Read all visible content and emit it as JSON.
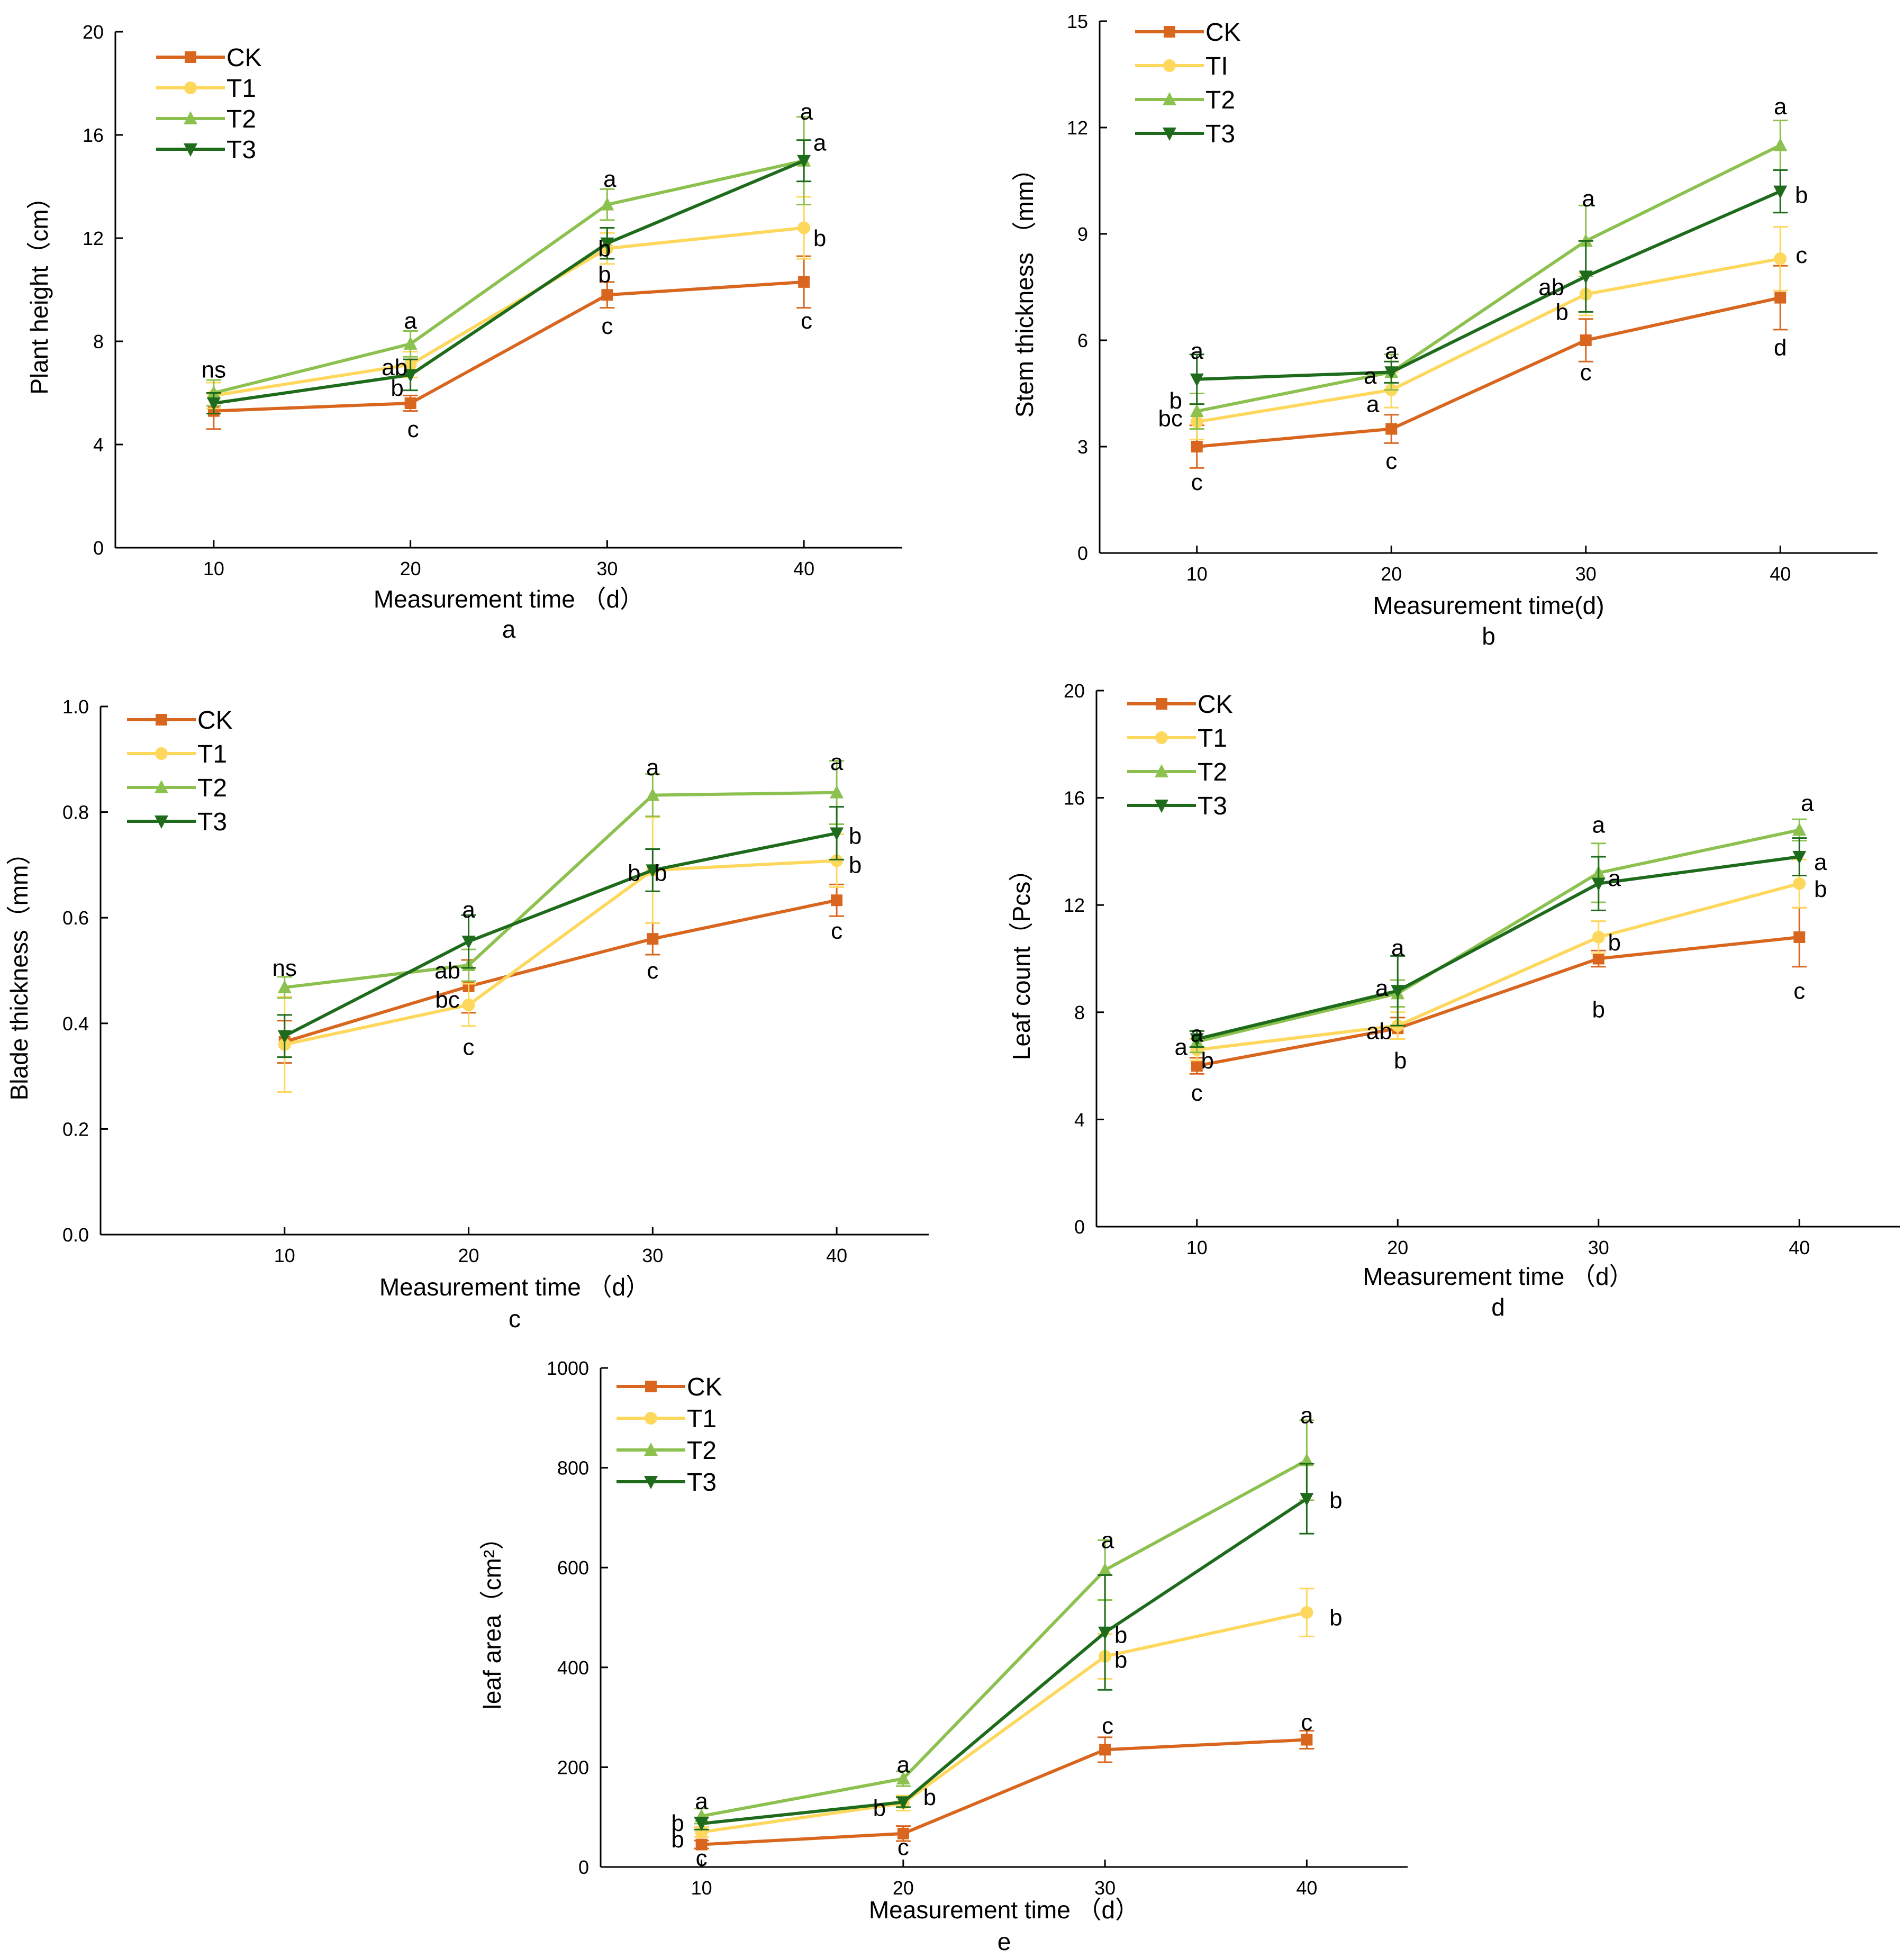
{
  "colors": {
    "CK": "#D9661F",
    "T1": "#FDD85D",
    "T2": "#8CC14F",
    "T3": "#1E6B1C",
    "axis": "#000000"
  },
  "chart_data": [
    {
      "type": "line",
      "panel": "a",
      "xlabel": "Measurement time （d）",
      "ylabel": "Plant height（cm）",
      "x": [
        10,
        20,
        30,
        40
      ],
      "xlim": [
        5,
        45
      ],
      "ylim": [
        0,
        20
      ],
      "yticks": [
        "0",
        "4",
        "8",
        "12",
        "16",
        "20"
      ],
      "legend": [
        "CK",
        "T1",
        "T2",
        "T3"
      ],
      "series": [
        {
          "name": "CK",
          "values": [
            5.3,
            5.6,
            9.8,
            10.3
          ],
          "errors": [
            0.7,
            0.3,
            0.5,
            1.0
          ]
        },
        {
          "name": "T1",
          "values": [
            5.9,
            7.1,
            11.6,
            12.4
          ],
          "errors": [
            0.5,
            0.5,
            0.6,
            1.2
          ]
        },
        {
          "name": "T2",
          "values": [
            6.0,
            7.9,
            13.3,
            15.0
          ],
          "errors": [
            0.5,
            0.5,
            0.6,
            1.7
          ]
        },
        {
          "name": "T3",
          "values": [
            5.6,
            6.7,
            11.8,
            15.0
          ],
          "errors": [
            0.4,
            0.6,
            0.6,
            0.8
          ]
        }
      ],
      "annotations": [
        {
          "text": "ns",
          "x": 10,
          "y": 6.9,
          "dx": 0
        },
        {
          "text": "a",
          "x": 20,
          "y": 8.8,
          "dx": 0
        },
        {
          "text": "ab",
          "x": 20,
          "y": 7.0,
          "dx": -30
        },
        {
          "text": "b",
          "x": 20,
          "y": 6.2,
          "dx": -25
        },
        {
          "text": "c",
          "x": 20,
          "y": 4.6,
          "dx": 5
        },
        {
          "text": "a",
          "x": 30,
          "y": 14.3,
          "dx": 5
        },
        {
          "text": "b",
          "x": 30,
          "y": 11.6,
          "dx": -5
        },
        {
          "text": "b",
          "x": 30,
          "y": 10.6,
          "dx": -5
        },
        {
          "text": "c",
          "x": 30,
          "y": 8.6,
          "dx": 0
        },
        {
          "text": "a",
          "x": 40,
          "y": 16.9,
          "dx": 5
        },
        {
          "text": "a",
          "x": 40,
          "y": 15.7,
          "dx": 30
        },
        {
          "text": "b",
          "x": 40,
          "y": 12.0,
          "dx": 30
        },
        {
          "text": "c",
          "x": 40,
          "y": 8.8,
          "dx": 5
        }
      ],
      "panel_label": "a"
    },
    {
      "type": "line",
      "panel": "b",
      "xlabel": "Measurement time(d)",
      "ylabel": "Stem thickness （mm）",
      "x": [
        10,
        20,
        30,
        40
      ],
      "xlim": [
        5,
        45
      ],
      "ylim": [
        0,
        15
      ],
      "yticks": [
        "0",
        "3",
        "6",
        "9",
        "12",
        "15"
      ],
      "legend": [
        "CK",
        "TI",
        "T2",
        "T3"
      ],
      "series": [
        {
          "name": "CK",
          "values": [
            3.0,
            3.5,
            6.0,
            7.2
          ],
          "errors": [
            0.6,
            0.4,
            0.6,
            0.9
          ]
        },
        {
          "name": "T1",
          "values": [
            3.7,
            4.6,
            7.3,
            8.3
          ],
          "errors": [
            0.5,
            0.5,
            0.6,
            0.9
          ]
        },
        {
          "name": "T2",
          "values": [
            4.0,
            5.1,
            8.8,
            11.5
          ],
          "errors": [
            0.5,
            0.5,
            1.0,
            0.7
          ]
        },
        {
          "name": "T3",
          "values": [
            4.9,
            5.1,
            7.8,
            10.2
          ],
          "errors": [
            0.7,
            0.3,
            1.0,
            0.6
          ]
        }
      ],
      "annotations": [
        {
          "text": "a",
          "x": 10,
          "y": 5.7,
          "dx": 0
        },
        {
          "text": "b",
          "x": 10,
          "y": 4.3,
          "dx": -40
        },
        {
          "text": "bc",
          "x": 10,
          "y": 3.8,
          "dx": -50
        },
        {
          "text": "c",
          "x": 10,
          "y": 2.0,
          "dx": 0
        },
        {
          "text": "a",
          "x": 20,
          "y": 5.7,
          "dx": 0
        },
        {
          "text": "a",
          "x": 20,
          "y": 5.0,
          "dx": -40
        },
        {
          "text": "a",
          "x": 20,
          "y": 4.2,
          "dx": -35
        },
        {
          "text": "c",
          "x": 20,
          "y": 2.6,
          "dx": 0
        },
        {
          "text": "a",
          "x": 30,
          "y": 10.0,
          "dx": 5
        },
        {
          "text": "ab",
          "x": 30,
          "y": 7.5,
          "dx": -65
        },
        {
          "text": "b",
          "x": 30,
          "y": 6.8,
          "dx": -45
        },
        {
          "text": "c",
          "x": 30,
          "y": 5.1,
          "dx": 0
        },
        {
          "text": "a",
          "x": 40,
          "y": 12.6,
          "dx": 0
        },
        {
          "text": "b",
          "x": 40,
          "y": 10.1,
          "dx": 40
        },
        {
          "text": "c",
          "x": 40,
          "y": 8.4,
          "dx": 40
        },
        {
          "text": "d",
          "x": 40,
          "y": 5.8,
          "dx": 0
        }
      ],
      "panel_label": "b"
    },
    {
      "type": "line",
      "panel": "c",
      "xlabel": "Measurement time （d）",
      "ylabel": "Blade thickness（mm）",
      "x": [
        10,
        20,
        30,
        40
      ],
      "xlim": [
        0,
        45
      ],
      "ylim": [
        0,
        1.0
      ],
      "yticks": [
        "0.0",
        "0.2",
        "0.4",
        "0.6",
        "0.8",
        "1.0"
      ],
      "legend": [
        "CK",
        "T1",
        "T2",
        "T3"
      ],
      "series": [
        {
          "name": "CK",
          "values": [
            0.365,
            0.47,
            0.56,
            0.633
          ],
          "errors": [
            0.04,
            0.05,
            0.03,
            0.03
          ]
        },
        {
          "name": "T1",
          "values": [
            0.36,
            0.435,
            0.69,
            0.708
          ],
          "errors": [
            0.09,
            0.04,
            0.1,
            0.05
          ]
        },
        {
          "name": "T2",
          "values": [
            0.468,
            0.51,
            0.832,
            0.837
          ],
          "errors": [
            0.02,
            0.03,
            0.04,
            0.06
          ]
        },
        {
          "name": "T3",
          "values": [
            0.376,
            0.555,
            0.69,
            0.76
          ],
          "errors": [
            0.04,
            0.05,
            0.04,
            0.05
          ]
        }
      ],
      "annotations": [
        {
          "text": "ns",
          "x": 10,
          "y": 0.505,
          "dx": 0
        },
        {
          "text": "a",
          "x": 20,
          "y": 0.615,
          "dx": 0
        },
        {
          "text": "ab",
          "x": 20,
          "y": 0.5,
          "dx": -40
        },
        {
          "text": "bc",
          "x": 20,
          "y": 0.445,
          "dx": -40
        },
        {
          "text": "c",
          "x": 20,
          "y": 0.355,
          "dx": 0
        },
        {
          "text": "a",
          "x": 30,
          "y": 0.885,
          "dx": 0
        },
        {
          "text": "b",
          "x": 30,
          "y": 0.685,
          "dx": -35
        },
        {
          "text": "b",
          "x": 30,
          "y": 0.685,
          "dx": 15
        },
        {
          "text": "c",
          "x": 30,
          "y": 0.5,
          "dx": 0
        },
        {
          "text": "a",
          "x": 40,
          "y": 0.895,
          "dx": 0
        },
        {
          "text": "b",
          "x": 40,
          "y": 0.755,
          "dx": 35
        },
        {
          "text": "b",
          "x": 40,
          "y": 0.7,
          "dx": 35
        },
        {
          "text": "c",
          "x": 40,
          "y": 0.575,
          "dx": 0
        }
      ],
      "panel_label": "c"
    },
    {
      "type": "line",
      "panel": "d",
      "xlabel": "Measurement time （d）",
      "ylabel": "Leaf count（Pcs）",
      "x": [
        10,
        20,
        30,
        40
      ],
      "xlim": [
        5,
        45
      ],
      "ylim": [
        0,
        20
      ],
      "yticks": [
        "0",
        "4",
        "8",
        "12",
        "16",
        "20"
      ],
      "legend": [
        "CK",
        "T1",
        "T2",
        "T3"
      ],
      "series": [
        {
          "name": "CK",
          "values": [
            6.0,
            7.4,
            10.0,
            10.8
          ],
          "errors": [
            0.3,
            0.4,
            0.3,
            1.1
          ]
        },
        {
          "name": "T1",
          "values": [
            6.6,
            7.5,
            10.8,
            12.8
          ],
          "errors": [
            0.4,
            0.5,
            0.6,
            0.9
          ]
        },
        {
          "name": "T2",
          "values": [
            6.9,
            8.7,
            13.2,
            14.8
          ],
          "errors": [
            0.4,
            0.5,
            1.1,
            0.4
          ]
        },
        {
          "name": "T3",
          "values": [
            7.0,
            8.8,
            12.8,
            13.8
          ],
          "errors": [
            0.3,
            1.3,
            1.0,
            0.7
          ]
        }
      ],
      "annotations": [
        {
          "text": "a",
          "x": 10,
          "y": 7.2,
          "dx": 0
        },
        {
          "text": "a",
          "x": 10,
          "y": 6.7,
          "dx": -30
        },
        {
          "text": "b",
          "x": 10,
          "y": 6.2,
          "dx": 20
        },
        {
          "text": "c",
          "x": 10,
          "y": 5.0,
          "dx": 0
        },
        {
          "text": "a",
          "x": 20,
          "y": 10.4,
          "dx": 0
        },
        {
          "text": "a",
          "x": 20,
          "y": 8.9,
          "dx": -30
        },
        {
          "text": "ab",
          "x": 20,
          "y": 7.3,
          "dx": -35
        },
        {
          "text": "b",
          "x": 20,
          "y": 6.2,
          "dx": 5
        },
        {
          "text": "a",
          "x": 30,
          "y": 15.0,
          "dx": 0
        },
        {
          "text": "a",
          "x": 30,
          "y": 13.0,
          "dx": 30
        },
        {
          "text": "b",
          "x": 30,
          "y": 10.6,
          "dx": 30
        },
        {
          "text": "b",
          "x": 30,
          "y": 8.1,
          "dx": 0
        },
        {
          "text": "a",
          "x": 40,
          "y": 15.8,
          "dx": 15
        },
        {
          "text": "a",
          "x": 40,
          "y": 13.6,
          "dx": 40
        },
        {
          "text": "b",
          "x": 40,
          "y": 12.6,
          "dx": 40
        },
        {
          "text": "c",
          "x": 40,
          "y": 8.8,
          "dx": 0
        }
      ],
      "panel_label": "d"
    },
    {
      "type": "line",
      "panel": "e",
      "xlabel": "Measurement time （d）",
      "ylabel": "leaf area（cm²）",
      "x": [
        10,
        20,
        30,
        40
      ],
      "xlim": [
        5,
        45
      ],
      "ylim": [
        0,
        1000
      ],
      "yticks": [
        "0",
        "200",
        "400",
        "600",
        "800",
        "1000"
      ],
      "legend": [
        "CK",
        "T1",
        "T2",
        "T3"
      ],
      "series": [
        {
          "name": "CK",
          "values": [
            45,
            67,
            235,
            255
          ],
          "errors": [
            8,
            15,
            25,
            18
          ]
        },
        {
          "name": "T1",
          "values": [
            70,
            128,
            422,
            510
          ],
          "errors": [
            10,
            15,
            45,
            48
          ]
        },
        {
          "name": "T2",
          "values": [
            102,
            177,
            595,
            815
          ],
          "errors": [
            15,
            15,
            60,
            80
          ]
        },
        {
          "name": "T3",
          "values": [
            87,
            130,
            470,
            738
          ],
          "errors": [
            12,
            10,
            115,
            70
          ]
        }
      ],
      "annotations": [
        {
          "text": "a",
          "x": 10,
          "y": 132,
          "dx": 0
        },
        {
          "text": "b",
          "x": 10,
          "y": 88,
          "dx": -45
        },
        {
          "text": "b",
          "x": 10,
          "y": 55,
          "dx": -45
        },
        {
          "text": "c",
          "x": 10,
          "y": 18,
          "dx": 0
        },
        {
          "text": "a",
          "x": 20,
          "y": 205,
          "dx": 0
        },
        {
          "text": "b",
          "x": 20,
          "y": 140,
          "dx": 50
        },
        {
          "text": "b",
          "x": 20,
          "y": 118,
          "dx": -45
        },
        {
          "text": "c",
          "x": 20,
          "y": 40,
          "dx": 0
        },
        {
          "text": "a",
          "x": 30,
          "y": 655,
          "dx": 5
        },
        {
          "text": "b",
          "x": 30,
          "y": 465,
          "dx": 30
        },
        {
          "text": "b",
          "x": 30,
          "y": 415,
          "dx": 30
        },
        {
          "text": "c",
          "x": 30,
          "y": 283,
          "dx": 5
        },
        {
          "text": "a",
          "x": 40,
          "y": 905,
          "dx": 0
        },
        {
          "text": "b",
          "x": 40,
          "y": 735,
          "dx": 55
        },
        {
          "text": "b",
          "x": 40,
          "y": 500,
          "dx": 55
        },
        {
          "text": "c",
          "x": 40,
          "y": 290,
          "dx": 0
        }
      ],
      "panel_label": "e"
    }
  ]
}
